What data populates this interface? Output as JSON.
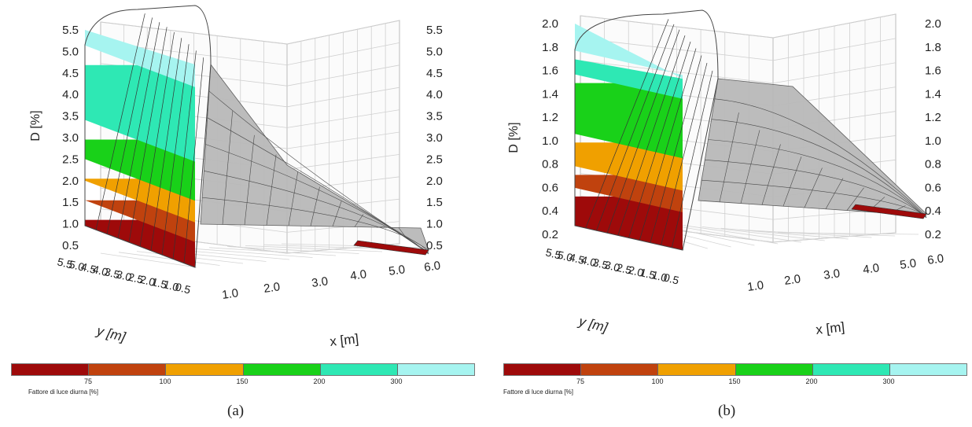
{
  "chart_data": [
    {
      "panel": "(a)",
      "type": "surface3d",
      "zlabel": "D [%]",
      "xlabel": "x [m]",
      "ylabel": "y [m]",
      "z_ticks": [
        "0.5",
        "1.0",
        "1.5",
        "2.0",
        "2.5",
        "3.0",
        "3.5",
        "4.0",
        "4.5",
        "5.0",
        "5.5"
      ],
      "x_ticks": [
        "1.0",
        "2.0",
        "3.0",
        "4.0",
        "5.0",
        "6.0"
      ],
      "y_ticks": [
        "5.5",
        "5.0",
        "4.5",
        "4.0",
        "3.5",
        "3.0",
        "2.5",
        "2.0",
        "1.5",
        "1.0",
        "0.5"
      ],
      "zlim": [
        0.3,
        5.8
      ],
      "x": [
        0.5,
        1.5,
        2.5,
        3.5,
        4.5,
        5.5
      ],
      "y": [
        0.5,
        1.5,
        2.5,
        3.5,
        4.5,
        5.5
      ],
      "profile_along_x": [
        5.6,
        3.4,
        1.8,
        1.1,
        0.75,
        0.6
      ],
      "wall_profile_along_y": [
        1.0,
        1.4,
        1.8,
        2.1,
        2.3,
        2.4
      ]
    },
    {
      "panel": "(b)",
      "type": "surface3d",
      "zlabel": "D [%]",
      "xlabel": "x [m]",
      "ylabel": "y [m]",
      "z_ticks": [
        "0.2",
        "0.4",
        "0.6",
        "0.8",
        "1.0",
        "1.2",
        "1.4",
        "1.6",
        "1.8",
        "2.0"
      ],
      "x_ticks": [
        "1.0",
        "2.0",
        "3.0",
        "4.0",
        "5.0",
        "6.0"
      ],
      "y_ticks": [
        "5.5",
        "5.0",
        "4.5",
        "4.0",
        "3.5",
        "3.0",
        "2.5",
        "2.0",
        "1.5",
        "1.0",
        "0.5"
      ],
      "zlim": [
        0.1,
        2.05
      ],
      "x": [
        0.5,
        1.5,
        2.5,
        3.5,
        4.5,
        5.5
      ],
      "y": [
        0.5,
        1.5,
        2.5,
        3.5,
        4.5,
        5.5
      ],
      "profile_along_x": [
        1.95,
        1.55,
        1.05,
        0.75,
        0.6,
        0.5
      ],
      "wall_profile_along_y": [
        0.3,
        0.5,
        0.7,
        0.9,
        1.0,
        1.1
      ]
    }
  ],
  "legend": {
    "title": "Fattore di luce diurna [%]",
    "ticks": [
      "75",
      "100",
      "150",
      "200",
      "300"
    ],
    "bands": [
      {
        "color": "#9e0a0a"
      },
      {
        "color": "#c0420e"
      },
      {
        "color": "#f0a000"
      },
      {
        "color": "#19d119"
      },
      {
        "color": "#2ee8b4"
      },
      {
        "color": "#a6f4f0"
      }
    ]
  },
  "panel_labels": {
    "a": "(a)",
    "b": "(b)"
  }
}
